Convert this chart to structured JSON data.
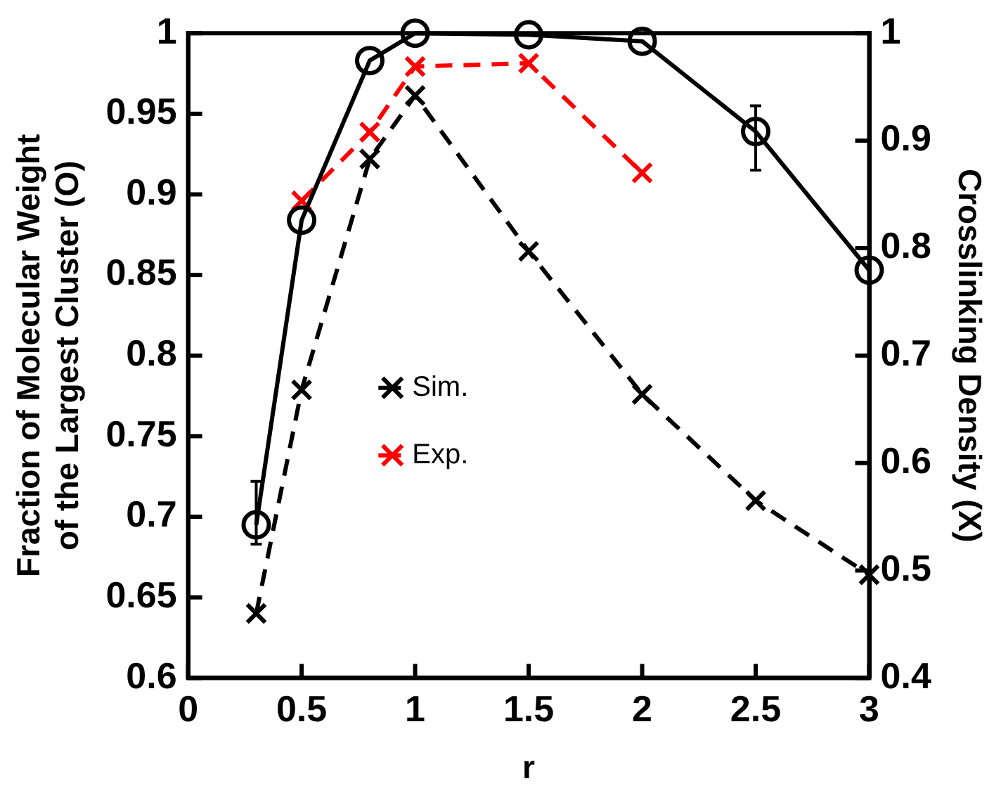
{
  "chart_data": {
    "type": "line",
    "xlabel": "r",
    "ylabel": "Fraction of Molecular Weight of the Largest Cluster (O)",
    "y2label": "Crosslinking Density (X)",
    "xlim": [
      0,
      3
    ],
    "xticks": [
      0,
      0.5,
      1,
      1.5,
      2,
      2.5,
      3
    ],
    "ylim": [
      0.6,
      1
    ],
    "yticks": [
      0.6,
      0.65,
      0.7,
      0.75,
      0.8,
      0.85,
      0.9,
      0.95,
      1
    ],
    "y2lim": [
      0.4,
      1
    ],
    "y2ticks": [
      0.4,
      0.5,
      0.6,
      0.7,
      0.8,
      0.9,
      1
    ],
    "grid": false,
    "legend": "left",
    "series": [
      {
        "color": "#000000",
        "marker": "circle",
        "line_style": "solid",
        "x": [
          0.3,
          0.5,
          0.8,
          1,
          1.5,
          2,
          2.5,
          3
        ],
        "values": [
          0.695,
          0.884,
          0.983,
          1,
          0.999,
          0.995,
          0.939,
          0.853
        ],
        "errors": [
          [
            0.683,
            0.722
          ],
          null,
          null,
          null,
          null,
          null,
          [
            0.915,
            0.955
          ],
          null
        ]
      },
      {
        "name": "Sim.",
        "color": "#000000",
        "marker": "cross",
        "line_style": "dashed",
        "axis": "y2",
        "x": [
          0.3,
          0.5,
          0.8,
          1,
          1.5,
          2,
          2.5,
          3
        ],
        "values": [
          0.46,
          0.668,
          0.883,
          0.942,
          0.797,
          0.664,
          0.565,
          0.496
        ]
      },
      {
        "name": "Exp.",
        "color": "#ff0000",
        "marker": "cross",
        "line_style": "dashed",
        "axis": "y2",
        "x": [
          0.5,
          0.8,
          1,
          1.5,
          2
        ],
        "values": [
          0.844,
          0.908,
          0.969,
          0.972,
          0.87
        ]
      }
    ]
  }
}
